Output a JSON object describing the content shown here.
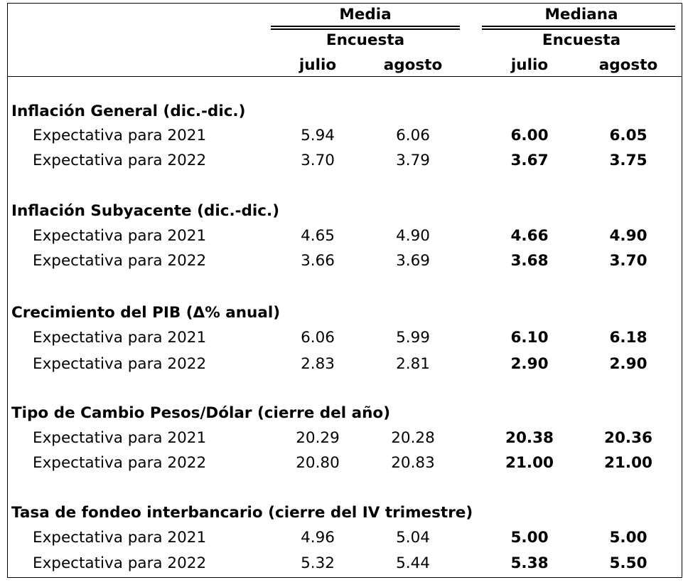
{
  "header": {
    "media": "Media",
    "mediana": "Mediana",
    "encuesta": "Encuesta",
    "julio": "julio",
    "agosto": "agosto"
  },
  "sections": [
    {
      "title": "Inflación General (dic.-dic.)",
      "rows": [
        {
          "label": "Expectativa para 2021",
          "media_julio": "5.94",
          "media_agosto": "6.06",
          "mediana_julio": "6.00",
          "mediana_agosto": "6.05"
        },
        {
          "label": "Expectativa para 2022",
          "media_julio": "3.70",
          "media_agosto": "3.79",
          "mediana_julio": "3.67",
          "mediana_agosto": "3.75"
        }
      ]
    },
    {
      "title": "Inflación Subyacente (dic.-dic.)",
      "rows": [
        {
          "label": "Expectativa para 2021",
          "media_julio": "4.65",
          "media_agosto": "4.90",
          "mediana_julio": "4.66",
          "mediana_agosto": "4.90"
        },
        {
          "label": "Expectativa para 2022",
          "media_julio": "3.66",
          "media_agosto": "3.69",
          "mediana_julio": "3.68",
          "mediana_agosto": "3.70"
        }
      ]
    },
    {
      "title": "Crecimiento del PIB (Δ% anual)",
      "rows": [
        {
          "label": "Expectativa para 2021",
          "media_julio": "6.06",
          "media_agosto": "5.99",
          "mediana_julio": "6.10",
          "mediana_agosto": "6.18"
        },
        {
          "label": "Expectativa para 2022",
          "media_julio": "2.83",
          "media_agosto": "2.81",
          "mediana_julio": "2.90",
          "mediana_agosto": "2.90"
        }
      ]
    },
    {
      "title": "Tipo de Cambio Pesos/Dólar (cierre del año)",
      "rows": [
        {
          "label": "Expectativa para 2021",
          "media_julio": "20.29",
          "media_agosto": "20.28",
          "mediana_julio": "20.38",
          "mediana_agosto": "20.36"
        },
        {
          "label": "Expectativa para 2022",
          "media_julio": "20.80",
          "media_agosto": "20.83",
          "mediana_julio": "21.00",
          "mediana_agosto": "21.00"
        }
      ]
    },
    {
      "title": "Tasa de fondeo interbancario (cierre del IV trimestre)",
      "rows": [
        {
          "label": "Expectativa para 2021",
          "media_julio": "4.96",
          "media_agosto": "5.04",
          "mediana_julio": "5.00",
          "mediana_agosto": "5.00"
        },
        {
          "label": "Expectativa para 2022",
          "media_julio": "5.32",
          "media_agosto": "5.44",
          "mediana_julio": "5.38",
          "mediana_agosto": "5.50"
        }
      ]
    }
  ]
}
